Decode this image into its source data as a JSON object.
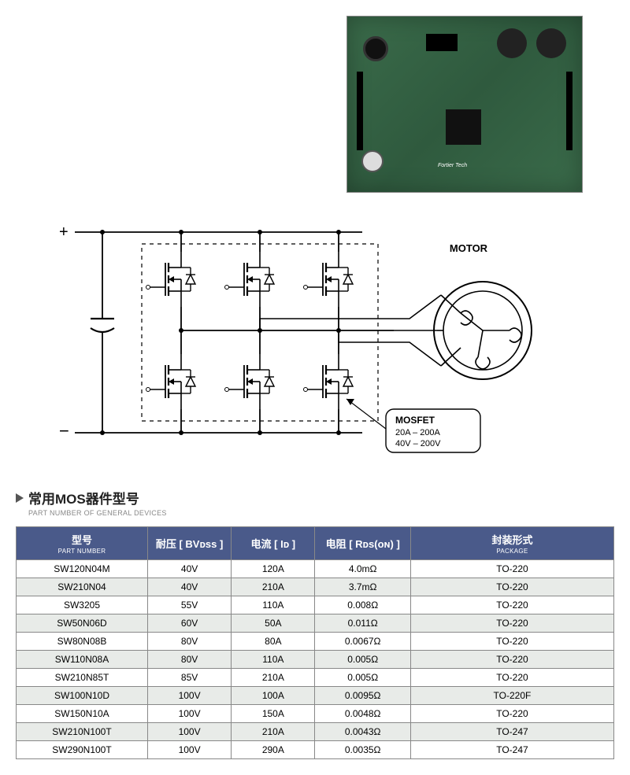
{
  "pcb": {
    "logo_text": "Fortier Tech"
  },
  "schematic": {
    "plus": "+",
    "minus": "−",
    "motor_label": "MOTOR",
    "callout_title": "MOSFET",
    "callout_line1": "20A – 200A",
    "callout_line2": "40V – 200V"
  },
  "section": {
    "title_cn": "常用MOS器件型号",
    "title_en": "PART NUMBER OF GENERAL DEVICES"
  },
  "table": {
    "headers": [
      {
        "cn": "型号",
        "en": "PART NUMBER"
      },
      {
        "cn": "耐压 [ BVᴅss ]",
        "en": ""
      },
      {
        "cn": "电流 [ Iᴅ ]",
        "en": ""
      },
      {
        "cn": "电阻 [ Rᴅs(ᴏɴ) ]",
        "en": ""
      },
      {
        "cn": "封装形式",
        "en": "PACKAGE"
      }
    ],
    "rows": [
      [
        "SW120N04M",
        "40V",
        "120A",
        "4.0mΩ",
        "TO-220"
      ],
      [
        "SW210N04",
        "40V",
        "210A",
        "3.7mΩ",
        "TO-220"
      ],
      [
        "SW3205",
        "55V",
        "110A",
        "0.008Ω",
        "TO-220"
      ],
      [
        "SW50N06D",
        "60V",
        "50A",
        "0.011Ω",
        "TO-220"
      ],
      [
        "SW80N08B",
        "80V",
        "80A",
        "0.0067Ω",
        "TO-220"
      ],
      [
        "SW110N08A",
        "80V",
        "110A",
        "0.005Ω",
        "TO-220"
      ],
      [
        "SW210N85T",
        "85V",
        "210A",
        "0.005Ω",
        "TO-220"
      ],
      [
        "SW100N10D",
        "100V",
        "100A",
        "0.0095Ω",
        "TO-220F"
      ],
      [
        "SW150N10A",
        "100V",
        "150A",
        "0.0048Ω",
        "TO-220"
      ],
      [
        "SW210N100T",
        "100V",
        "210A",
        "0.0043Ω",
        "TO-247"
      ],
      [
        "SW290N100T",
        "100V",
        "290A",
        "0.0035Ω",
        "TO-247"
      ]
    ]
  }
}
